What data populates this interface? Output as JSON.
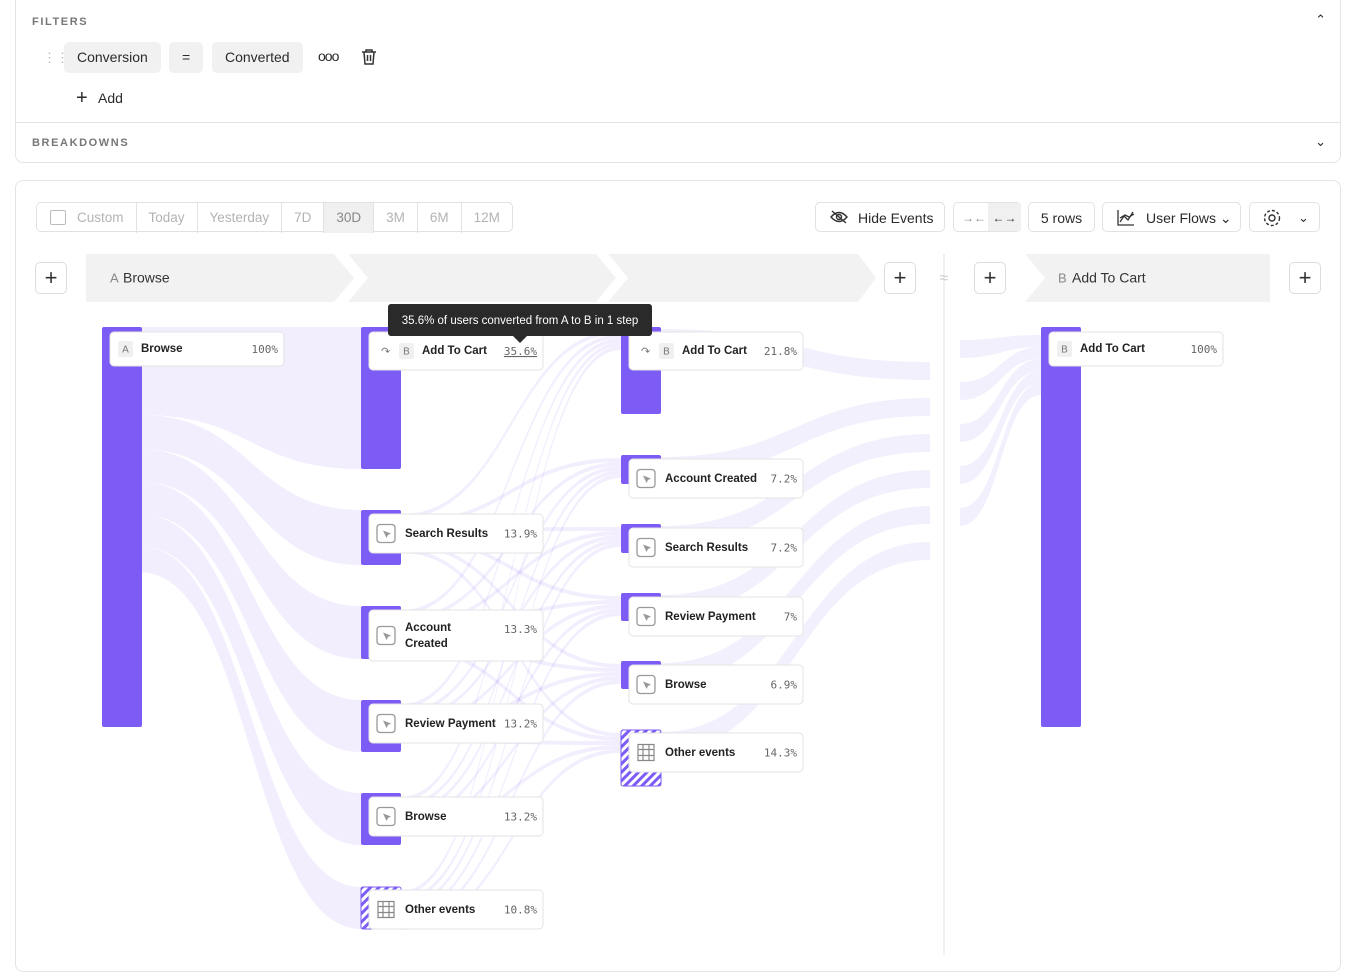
{
  "filters": {
    "title": "FILTERS",
    "field": "Conversion",
    "operator": "=",
    "value": "Converted",
    "add": "Add"
  },
  "breakdowns": {
    "title": "BREAKDOWNS"
  },
  "toolbar": {
    "ranges": [
      "Custom",
      "Today",
      "Yesterday",
      "7D",
      "30D",
      "3M",
      "6M",
      "12M"
    ],
    "hide_events": "Hide Events",
    "rows": "5 rows",
    "view": "User Flows"
  },
  "steps": [
    {
      "letter": "A",
      "label": "Browse"
    },
    {
      "letter": "B",
      "label": "Add To Cart"
    }
  ],
  "tooltip": "35.6% of users converted from A to B in 1 step",
  "columns": [
    {
      "nodes": [
        {
          "letter": "A",
          "label": "Browse",
          "pct": "100%"
        }
      ]
    },
    {
      "nodes": [
        {
          "letter": "B",
          "label": "Add To Cart",
          "pct": "35.6%"
        },
        {
          "label": "Search Results",
          "pct": "13.9%"
        },
        {
          "label": "Account Created",
          "pct": "13.3%"
        },
        {
          "label": "Review Payment",
          "pct": "13.2%"
        },
        {
          "label": "Browse",
          "pct": "13.2%"
        },
        {
          "label": "Other events",
          "pct": "10.8%"
        }
      ]
    },
    {
      "nodes": [
        {
          "letter": "B",
          "label": "Add To Cart",
          "pct": "21.8%"
        },
        {
          "label": "Account Created",
          "pct": "7.2%"
        },
        {
          "label": "Search Results",
          "pct": "7.2%"
        },
        {
          "label": "Review Payment",
          "pct": "7%"
        },
        {
          "label": "Browse",
          "pct": "6.9%"
        },
        {
          "label": "Other events",
          "pct": "14.3%"
        }
      ]
    },
    {
      "nodes": [
        {
          "letter": "B",
          "label": "Add To Cart",
          "pct": "100%"
        }
      ]
    }
  ]
}
